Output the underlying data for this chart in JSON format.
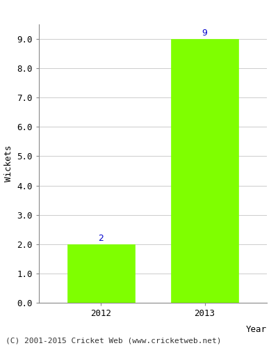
{
  "categories": [
    "2012",
    "2013"
  ],
  "values": [
    2,
    9
  ],
  "bar_color": "#7fff00",
  "bar_edge_color": "#7fff00",
  "ylabel": "Wickets",
  "xlabel": "Year",
  "ylim": [
    0,
    9.5
  ],
  "yticks": [
    0.0,
    1.0,
    2.0,
    3.0,
    4.0,
    5.0,
    6.0,
    7.0,
    8.0,
    9.0
  ],
  "annotation_color": "#0000cc",
  "annotation_fontsize": 9,
  "footer_text": "(C) 2001-2015 Cricket Web (www.cricketweb.net)",
  "footer_fontsize": 8,
  "background_color": "#ffffff",
  "grid_color": "#cccccc",
  "bar_width": 0.65
}
